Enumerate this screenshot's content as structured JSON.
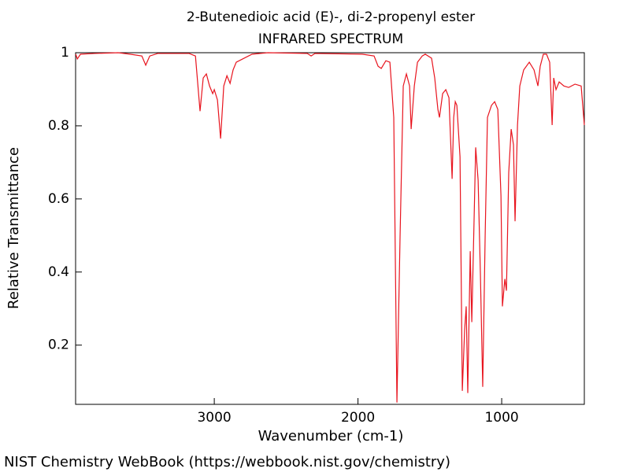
{
  "chart_data": {
    "type": "line",
    "title": "2-Butenedioic acid (E)-, di-2-propenyl ester",
    "subtitle": "INFRARED SPECTRUM",
    "x_label": "Wavenumber (cm-1)",
    "y_label": "Relative Transmittance",
    "xlim": [
      3965,
      425
    ],
    "ylim": [
      0.038,
      1
    ],
    "xticks": [
      3000,
      2000,
      1000
    ],
    "yticks": [
      0.2,
      0.4,
      0.6,
      0.8,
      1
    ],
    "color": "#e8141e",
    "x": [
      3964,
      3953,
      3931,
      3833,
      3668,
      3586,
      3504,
      3477,
      3449,
      3394,
      3175,
      3131,
      3099,
      3077,
      3055,
      3033,
      3011,
      3000,
      2978,
      2956,
      2934,
      2912,
      2890,
      2869,
      2847,
      2737,
      2627,
      2353,
      2326,
      2299,
      1970,
      1888,
      1860,
      1838,
      1806,
      1778,
      1751,
      1729,
      1707,
      1685,
      1663,
      1641,
      1630,
      1608,
      1586,
      1553,
      1532,
      1488,
      1466,
      1444,
      1433,
      1411,
      1389,
      1367,
      1345,
      1334,
      1323,
      1312,
      1290,
      1274,
      1258,
      1247,
      1236,
      1219,
      1208,
      1197,
      1181,
      1164,
      1148,
      1132,
      1115,
      1099,
      1071,
      1049,
      1027,
      1005,
      995,
      978,
      967,
      951,
      934,
      918,
      907,
      890,
      874,
      847,
      808,
      775,
      748,
      732,
      710,
      688,
      666,
      649,
      638,
      622,
      600,
      567,
      534,
      490,
      447,
      425
    ],
    "values": [
      0.996,
      0.983,
      0.996,
      0.998,
      1.0,
      0.996,
      0.991,
      0.966,
      0.991,
      0.998,
      0.998,
      0.991,
      0.84,
      0.931,
      0.942,
      0.909,
      0.888,
      0.899,
      0.871,
      0.765,
      0.909,
      0.937,
      0.916,
      0.953,
      0.974,
      0.996,
      1.0,
      0.998,
      0.991,
      0.998,
      0.996,
      0.991,
      0.963,
      0.957,
      0.978,
      0.974,
      0.823,
      0.043,
      0.5,
      0.909,
      0.942,
      0.909,
      0.791,
      0.909,
      0.974,
      0.991,
      0.996,
      0.985,
      0.931,
      0.845,
      0.823,
      0.888,
      0.899,
      0.877,
      0.655,
      0.823,
      0.866,
      0.856,
      0.715,
      0.075,
      0.241,
      0.306,
      0.069,
      0.457,
      0.263,
      0.457,
      0.741,
      0.651,
      0.392,
      0.086,
      0.5,
      0.823,
      0.856,
      0.866,
      0.845,
      0.608,
      0.306,
      0.381,
      0.349,
      0.672,
      0.791,
      0.748,
      0.539,
      0.802,
      0.909,
      0.953,
      0.974,
      0.953,
      0.909,
      0.963,
      0.996,
      0.996,
      0.974,
      0.802,
      0.931,
      0.899,
      0.92,
      0.909,
      0.905,
      0.914,
      0.909,
      0.802
    ]
  },
  "footer": "NIST Chemistry WebBook (https://webbook.nist.gov/chemistry)"
}
